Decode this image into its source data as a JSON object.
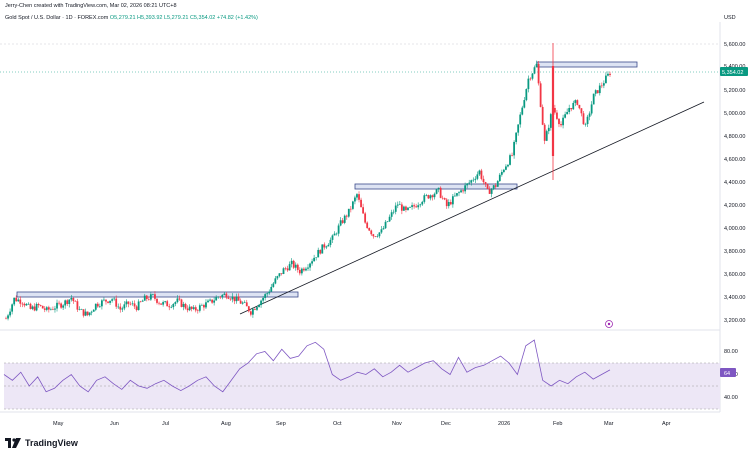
{
  "header": {
    "created_by": "Jerry-Chen created with TradingView.com, Mar 02, 2026 08:21 UTC+8",
    "symbol": "Gold Spot / U.S. Dollar · 1D · FOREX.com",
    "ohlc": "O5,279.21  H5,393.92  L5,279.21  C5,354.02  +74.82 (+1.42%)",
    "currency": "USD"
  },
  "price_axis": {
    "labels": [
      "5,600.00",
      "5,400.00",
      "5,200.00",
      "5,000.00",
      "4,800.00",
      "4,600.00",
      "4,400.00",
      "4,200.00",
      "4,000.00",
      "3,800.00",
      "3,600.00",
      "3,400.00",
      "3,200.00"
    ],
    "last_price": "5,354.02"
  },
  "rsi_axis": {
    "labels": [
      "80.00",
      "60.00",
      "40.00"
    ],
    "last_value": "64"
  },
  "time_axis": {
    "labels": [
      "May",
      "Jun",
      "Jul",
      "Aug",
      "Sep",
      "Oct",
      "Nov",
      "Dec",
      "2026",
      "Feb",
      "Mar",
      "Apr"
    ]
  },
  "footer": {
    "brand": "TradingView"
  },
  "colors": {
    "up": "#089981",
    "down": "#f23645",
    "rsi_line": "#7e57c2",
    "rsi_band": "#ede7f6",
    "zone_fill": "#dde3f3",
    "zone_stroke": "#3b4a8a"
  },
  "chart_data": {
    "type": "candlestick",
    "timeframe": "1D",
    "ylim": [
      3150,
      5650
    ],
    "last_close": 5354.02,
    "closes_approx": [
      3230,
      3400,
      3380,
      3310,
      3340,
      3300,
      3330,
      3360,
      3410,
      3300,
      3260,
      3350,
      3380,
      3400,
      3310,
      3360,
      3330,
      3400,
      3420,
      3360,
      3350,
      3380,
      3330,
      3300,
      3340,
      3370,
      3420,
      3440,
      3400,
      3360,
      3290,
      3370,
      3450,
      3560,
      3650,
      3700,
      3640,
      3700,
      3780,
      3860,
      3920,
      4050,
      4150,
      4300,
      4060,
      3950,
      3980,
      4100,
      4220,
      4150,
      4200,
      4260,
      4300,
      4330,
      4200,
      4280,
      4350,
      4420,
      4500,
      4320,
      4380,
      4530,
      4640,
      4980,
      5300,
      5420,
      4750,
      5050,
      4900,
      5050,
      5100,
      4880,
      5150,
      5250,
      5354
    ],
    "resistance_zones": [
      {
        "from": 3420,
        "to": 3455
      },
      {
        "from": 4350,
        "to": 4385
      },
      {
        "from": 5395,
        "to": 5430
      }
    ],
    "rsi": {
      "levels": [
        70,
        50,
        30
      ],
      "ylim": [
        25,
        95
      ],
      "values": [
        60,
        55,
        62,
        50,
        58,
        45,
        48,
        55,
        60,
        50,
        45,
        55,
        58,
        52,
        47,
        55,
        50,
        48,
        52,
        55,
        50,
        46,
        50,
        55,
        58,
        50,
        45,
        55,
        65,
        70,
        78,
        80,
        72,
        82,
        74,
        76,
        85,
        88,
        82,
        60,
        55,
        58,
        62,
        60,
        65,
        58,
        62,
        68,
        62,
        66,
        70,
        72,
        65,
        60,
        75,
        62,
        66,
        68,
        72,
        76,
        70,
        60,
        85,
        90,
        55,
        50,
        55,
        52,
        58,
        62,
        56,
        60,
        64
      ]
    }
  }
}
